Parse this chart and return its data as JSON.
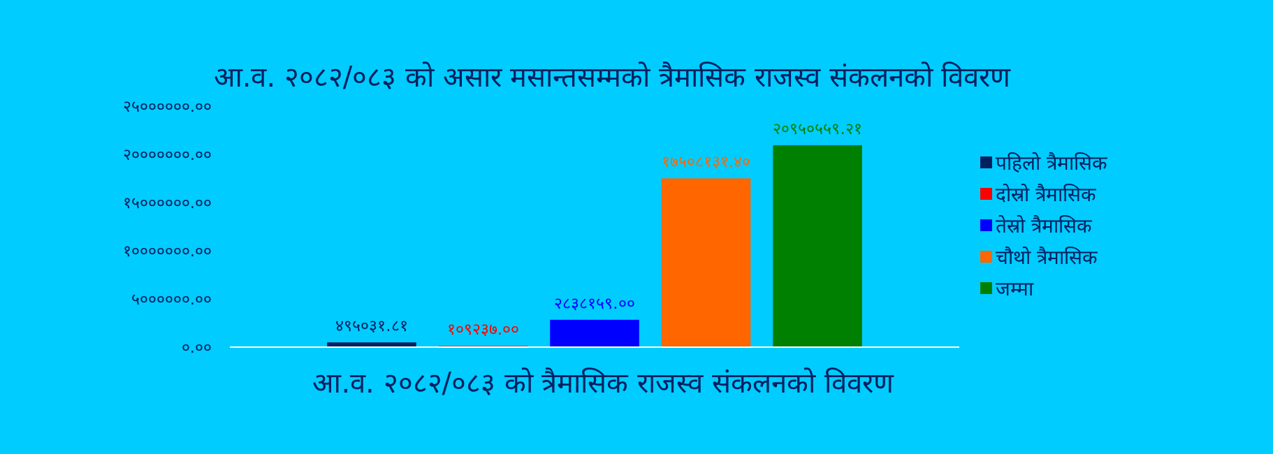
{
  "chart_data": {
    "type": "bar",
    "title": "आ.व. २०८२/०८३ को असार मसान्तसम्मको त्रैमासिक राजस्व संकलनको विवरण",
    "xlabel": "आ.व. २०८२/०८३ को त्रैमासिक राजस्व संकलनको विवरण",
    "categories": [
      null
    ],
    "series": [
      {
        "name": "पहिलो त्रैमासिक",
        "color": "#002060",
        "values": [
          495031.81
        ],
        "value_labels": [
          "४९५०३१.८१"
        ]
      },
      {
        "name": "दोस्रो त्रैमासिक",
        "color": "#ff0000",
        "values": [
          109237.0
        ],
        "value_labels": [
          "१०९२३७.००"
        ]
      },
      {
        "name": "तेस्रो त्रैमासिक",
        "color": "#0000ff",
        "values": [
          2838159.0
        ],
        "value_labels": [
          "२८३८१५९.००"
        ]
      },
      {
        "name": "चौथो त्रैमासिक",
        "color": "#ff6600",
        "values": [
          17508131.4
        ],
        "value_labels": [
          "१७५०८१३१.४०"
        ]
      },
      {
        "name": "जम्मा",
        "color": "#008000",
        "values": [
          20950559.21
        ],
        "value_labels": [
          "२०९५०५५९.२१"
        ]
      }
    ],
    "ylim": [
      0,
      25000000
    ],
    "yticks": [
      {
        "value": 0,
        "label": "०.००"
      },
      {
        "value": 5000000,
        "label": "५००००००.००"
      },
      {
        "value": 10000000,
        "label": "१०००००००.००"
      },
      {
        "value": 15000000,
        "label": "१५००००००.००"
      },
      {
        "value": 20000000,
        "label": "२०००००००.००"
      },
      {
        "value": 25000000,
        "label": "२५००००००.००"
      }
    ],
    "legend": "right",
    "grid": false
  }
}
